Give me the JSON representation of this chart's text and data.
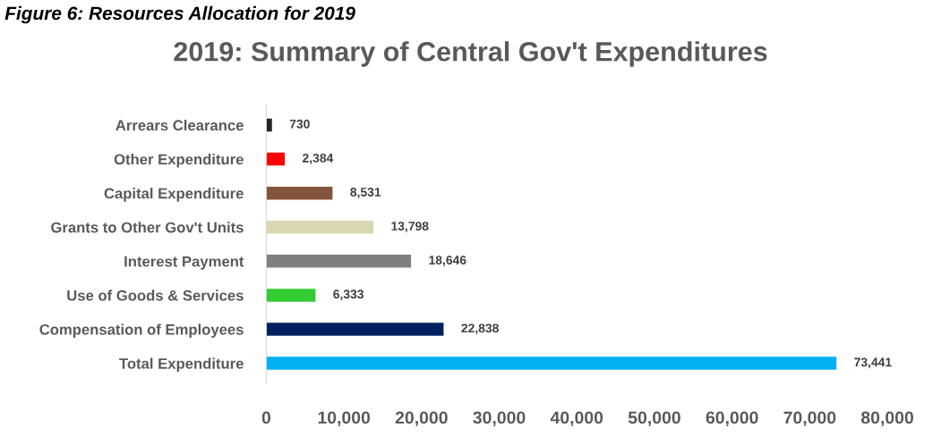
{
  "chart_data": {
    "type": "bar",
    "orientation": "horizontal",
    "title": "2019: Summary of Central Gov't Expenditures",
    "annotations": [
      "Figure 6: Resources Allocation for 2019"
    ],
    "categories": [
      "Arrears Clearance",
      "Other Expenditure",
      "Capital Expenditure",
      "Grants to Other Gov't Units",
      "Interest Payment",
      "Use of Goods & Services",
      "Compensation of Employees",
      "Total Expenditure"
    ],
    "values": [
      730,
      2384,
      8531,
      13798,
      18646,
      6333,
      22838,
      73441
    ],
    "value_labels": [
      "730",
      "2,384",
      "8,531",
      "13,798",
      "18,646",
      "6,333",
      "22,838",
      "73,441"
    ],
    "colors": [
      "#262626",
      "#ff0000",
      "#85543c",
      "#d9d7b1",
      "#7f7f7f",
      "#33cc33",
      "#002060",
      "#00b0f0"
    ],
    "xlim": [
      0,
      80000
    ],
    "xticks": [
      0,
      {
        "value": 10000,
        "label": "10,000"
      },
      {
        "value": 20000,
        "label": "20,000"
      },
      {
        "value": 30000,
        "label": "30,000"
      },
      {
        "value": 40000,
        "label": "40,000"
      },
      {
        "value": 50000,
        "label": "50,000"
      },
      {
        "value": 60000,
        "label": "60,000"
      },
      {
        "value": 70000,
        "label": "70,000"
      },
      {
        "value": 80000,
        "label": "80,000"
      }
    ],
    "grid": false
  }
}
